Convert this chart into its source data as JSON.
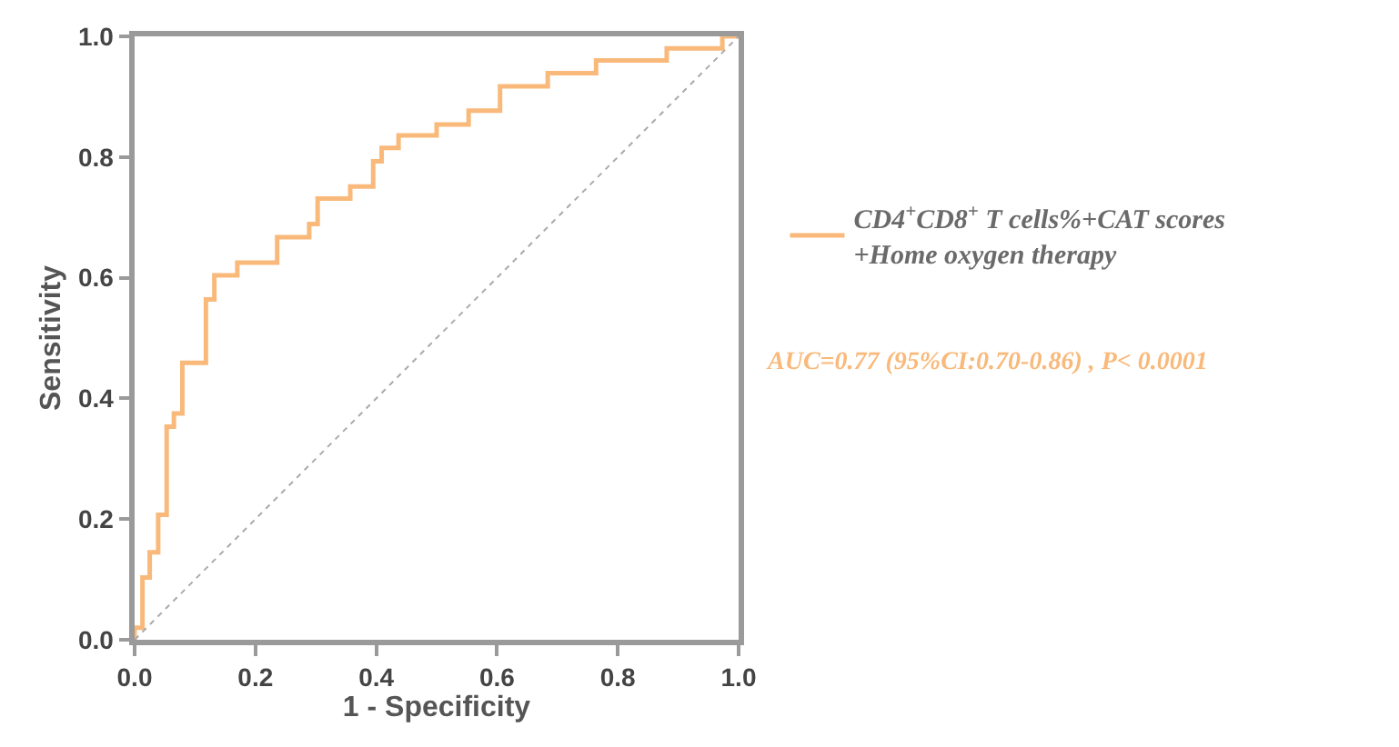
{
  "chart_data": {
    "type": "step",
    "xlabel": "1 - Specificity",
    "ylabel": "Sensitivity",
    "xlim": [
      0,
      1
    ],
    "ylim": [
      0,
      1
    ],
    "xticks": [
      {
        "value": 0,
        "label": "0.0"
      },
      0.2,
      0.4,
      0.6,
      0.8,
      {
        "value": 1,
        "label": "1.0"
      }
    ],
    "yticks": [
      {
        "value": 0,
        "label": "0.0"
      },
      0.2,
      0.4,
      0.6,
      0.8,
      {
        "value": 1,
        "label": "1.0"
      }
    ],
    "legend": "right",
    "series": [
      {
        "name": "CD4$^{+}$CD8$^{+}$ T cells%+CAT scores\n+Home oxygen therapy",
        "color": "#f9b97a",
        "x": [
          0,
          0,
          0.013,
          0.025,
          0.039,
          0.053,
          0.065,
          0.079,
          0.118,
          0.132,
          0.17,
          0.236,
          0.289,
          0.303,
          0.357,
          0.395,
          0.409,
          0.437,
          0.5,
          0.553,
          0.605,
          0.684,
          0.764,
          0.881,
          0.973,
          1.0
        ],
        "values": [
          0,
          0.02,
          0.103,
          0.145,
          0.207,
          0.353,
          0.375,
          0.459,
          0.564,
          0.604,
          0.625,
          0.667,
          0.689,
          0.731,
          0.751,
          0.793,
          0.815,
          0.836,
          0.854,
          0.877,
          0.917,
          0.939,
          0.96,
          0.98,
          1.0,
          1.0
        ]
      },
      {
        "type": "line",
        "color": "#aaaaaa",
        "line_style": "dotted",
        "x": [
          0,
          1
        ],
        "values": [
          0,
          1
        ]
      }
    ],
    "annotations": [
      "AUC=0.77 (95%CI:0.70-0.86) , P< 0.0001"
    ]
  }
}
